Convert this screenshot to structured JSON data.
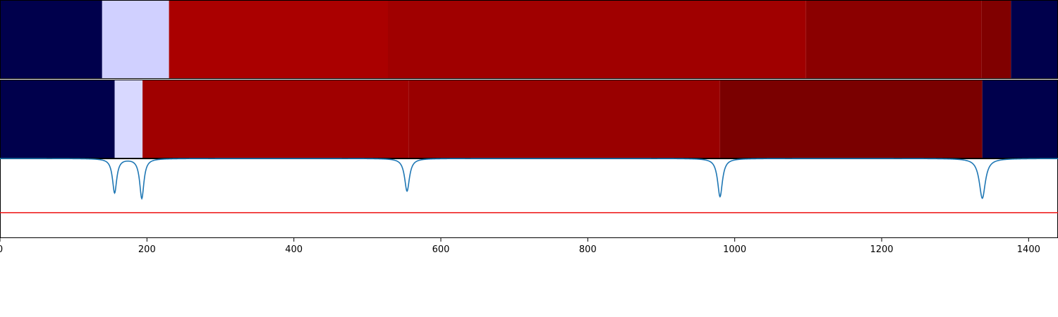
{
  "chart_data": {
    "type": "heatmap",
    "title": "",
    "xlabel": "",
    "ylabel": "",
    "xlim": [
      0,
      1440
    ],
    "x_ticks": [
      0,
      200,
      400,
      600,
      800,
      1000,
      1200,
      1400
    ],
    "x_tick_labels": [
      "0",
      "200",
      "400",
      "600",
      "800",
      "1000",
      "1200",
      "1400"
    ],
    "grid": false,
    "segment_rows": [
      {
        "segments": [
          {
            "start": 0,
            "end": 139,
            "color": "#00004c"
          },
          {
            "start": 139,
            "end": 230,
            "color": "#d0d0ff"
          },
          {
            "start": 230,
            "end": 528,
            "color": "#aa0000"
          },
          {
            "start": 528,
            "end": 1097,
            "color": "#a00000"
          },
          {
            "start": 1097,
            "end": 1336,
            "color": "#8b0000"
          },
          {
            "start": 1336,
            "end": 1376,
            "color": "#800000"
          },
          {
            "start": 1376,
            "end": 1440,
            "color": "#00004c"
          }
        ]
      },
      {
        "segments": [
          {
            "start": 0,
            "end": 156,
            "color": "#00004c"
          },
          {
            "start": 156,
            "end": 194,
            "color": "#d8d8ff"
          },
          {
            "start": 194,
            "end": 556,
            "color": "#a00000"
          },
          {
            "start": 556,
            "end": 980,
            "color": "#990000"
          },
          {
            "start": 980,
            "end": 1337,
            "color": "#7a0000"
          },
          {
            "start": 1337,
            "end": 1440,
            "color": "#00004c"
          }
        ]
      }
    ],
    "bottom_panel": {
      "ylim": [
        -1,
        0
      ],
      "series": [
        {
          "color": "#1f77b4",
          "baseline": 0,
          "dips": [
            {
              "center": 156,
              "depth": 0.43,
              "width": 3.5
            },
            {
              "center": 193,
              "depth": 0.5,
              "width": 3.5
            },
            {
              "center": 554,
              "depth": 0.41,
              "width": 4
            },
            {
              "center": 980,
              "depth": 0.48,
              "width": 4
            },
            {
              "center": 1337,
              "depth": 0.5,
              "width": 5
            }
          ]
        }
      ],
      "threshold": {
        "value": -0.68,
        "color": "#ee1111"
      }
    }
  }
}
